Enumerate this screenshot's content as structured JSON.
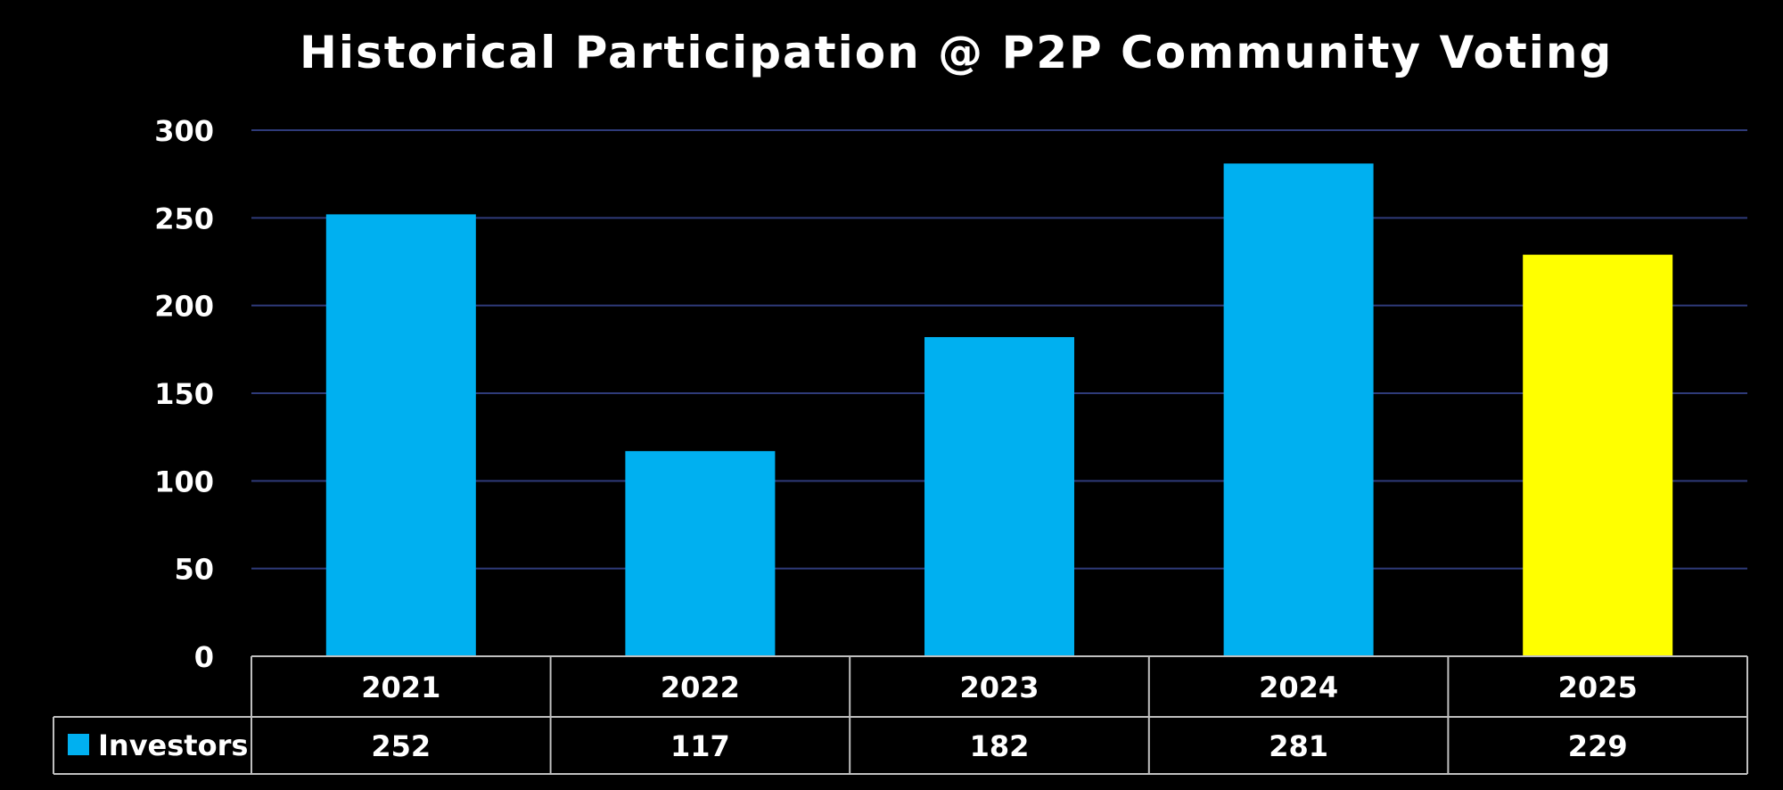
{
  "chart_data": {
    "type": "bar",
    "title": "Historical Participation @ P2P Community Voting",
    "categories": [
      "2021",
      "2022",
      "2023",
      "2024",
      "2025"
    ],
    "series": [
      {
        "name": "Investors",
        "values": [
          252,
          117,
          182,
          281,
          229
        ]
      }
    ],
    "highlight_index": 4,
    "ylim": [
      0,
      300
    ],
    "yticks": [
      0,
      50,
      100,
      150,
      200,
      250,
      300
    ],
    "grid": true,
    "legend": "data-table",
    "colors": {
      "bar": "#00b0f0",
      "highlight": "#ffff00",
      "grid": "#2f3b7a",
      "table_border": "#bfbfbf",
      "background": "#000000"
    }
  }
}
